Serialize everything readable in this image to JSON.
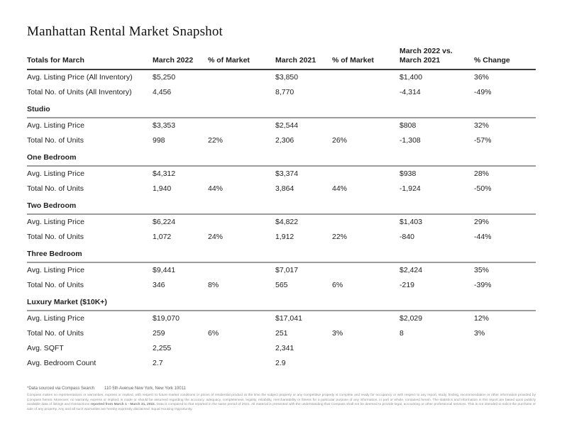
{
  "page": {
    "title": "Manhattan Rental Market Snapshot"
  },
  "table": {
    "columns": [
      "Totals for March",
      "March 2022",
      "% of Market",
      "March 2021",
      "% of Market",
      "March 2022 vs.\nMarch 2021",
      "% Change"
    ],
    "sections": [
      {
        "heading": null,
        "rows": [
          {
            "label": "Avg. Listing Price (All Inventory)",
            "values": [
              "$5,250",
              "",
              "$3,850",
              "",
              "$1,400",
              "36%"
            ]
          },
          {
            "label": "Total No. of Units (All Inventory)",
            "values": [
              "4,456",
              "",
              "8,770",
              "",
              "-4,314",
              "-49%"
            ]
          }
        ]
      },
      {
        "heading": "Studio",
        "rows": [
          {
            "label": "Avg. Listing Price",
            "values": [
              "$3,353",
              "",
              "$2,544",
              "",
              "$808",
              "32%"
            ]
          },
          {
            "label": "Total No. of Units",
            "values": [
              "998",
              "22%",
              "2,306",
              "26%",
              "-1,308",
              "-57%"
            ]
          }
        ]
      },
      {
        "heading": "One Bedroom",
        "rows": [
          {
            "label": "Avg. Listing Price",
            "values": [
              "$4,312",
              "",
              "$3,374",
              "",
              "$938",
              "28%"
            ]
          },
          {
            "label": "Total No. of Units",
            "values": [
              "1,940",
              "44%",
              "3,864",
              "44%",
              "-1,924",
              "-50%"
            ]
          }
        ]
      },
      {
        "heading": "Two Bedroom",
        "rows": [
          {
            "label": "Avg. Listing Price",
            "values": [
              "$6,224",
              "",
              "$4,822",
              "",
              "$1,403",
              "29%"
            ]
          },
          {
            "label": "Total No. of Units",
            "values": [
              "1,072",
              "24%",
              "1,912",
              "22%",
              "-840",
              "-44%"
            ]
          }
        ]
      },
      {
        "heading": "Three Bedroom",
        "rows": [
          {
            "label": "Avg. Listing Price",
            "values": [
              "$9,441",
              "",
              "$7,017",
              "",
              "$2,424",
              "35%"
            ]
          },
          {
            "label": "Total No. of Units",
            "values": [
              "346",
              "8%",
              "565",
              "6%",
              "-219",
              "-39%"
            ]
          }
        ]
      },
      {
        "heading": "Luxury Market ($10K+)",
        "rows": [
          {
            "label": "Avg. Listing Price",
            "values": [
              "$19,070",
              "",
              "$17,041",
              "",
              "$2,029",
              "12%"
            ]
          },
          {
            "label": "Total No. of Units",
            "values": [
              "259",
              "6%",
              "251",
              "3%",
              "8",
              "3%"
            ]
          },
          {
            "label": "Avg. SQFT",
            "values": [
              "2,255",
              "",
              "2,341",
              "",
              "",
              ""
            ]
          },
          {
            "label": "Avg. Bedroom Count",
            "values": [
              "2.7",
              "",
              "2.9",
              "",
              "",
              ""
            ]
          }
        ]
      }
    ]
  },
  "footer": {
    "source": "*Data sourced via Compass Search",
    "address": "110 5th Avenue New York, New York 10011",
    "disclaimer": {
      "part1": "Compass makes no representations or warranties, express or implied, with respect to future market conditions or prices of residential product at the time the subject property or any competitive property is complete and ready for occupancy or with respect to any report, study, finding, recommendation or other information provided by Compass herein. Moreover, no warranty, express or implied, is made or should be assumed regarding the accuracy, adequacy, completeness, legality, reliability, merchantability or fitness for a particular purpose of any information, in part or whole, contained herein. The statistics and information in this report are based upon publicly available data of listings and transactions ",
      "bold": "reported from March 1 - March 31, 2022.",
      "part2": " Data is compared to that reported in the same period of 2021. All material is presented with the understanding that Compass shall not be deemed to provide legal, accounting or other professional services. This is not intended to solicit the purchase or sale of any property. Any and all such warranties are hereby expressly disclaimed. Equal Housing Opportunity."
    }
  }
}
